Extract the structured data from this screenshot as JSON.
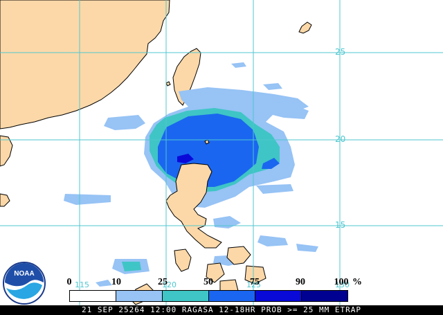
{
  "map": {
    "colors": {
      "ocean": "#ffffff",
      "land": "#fcd8a8",
      "coastline": "#000000",
      "grid": "#4fc7cf",
      "prob_10": "#97c3f5",
      "prob_25": "#3fc5c5",
      "prob_50": "#1a66f0",
      "prob_75": "#0a0ad8",
      "prob_90": "#000091"
    },
    "latitude_labels": [
      "25",
      "20",
      "15"
    ],
    "longitude_labels": [
      "115",
      "120",
      "125",
      "130"
    ]
  },
  "legend": {
    "ticks": [
      "0",
      "10",
      "25",
      "50",
      "75",
      "90",
      "100"
    ],
    "unit": "%",
    "colors": [
      "#ffffff",
      "#97c3f5",
      "#3fc5c5",
      "#1a66f0",
      "#0a0ad8",
      "#000091"
    ]
  },
  "caption": "21 SEP 25264 12:00 RAGASA 12-18HR PROB >= 25 MM ETRAP",
  "logo": {
    "text": "NOAA",
    "icon": "noaa-logo-icon"
  }
}
